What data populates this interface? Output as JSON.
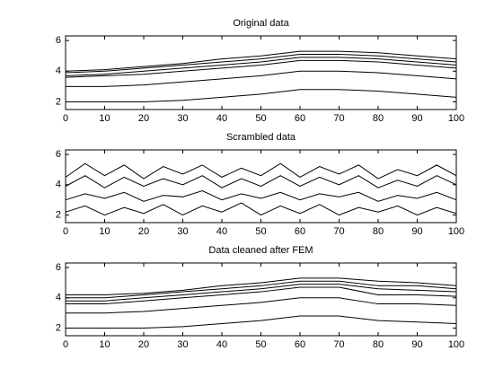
{
  "chart_data": [
    {
      "type": "line",
      "title": "Original data",
      "x": [
        0,
        10,
        20,
        30,
        40,
        50,
        60,
        70,
        80,
        90,
        100
      ],
      "series": [
        {
          "color": "#000000",
          "values": [
            4.0,
            4.1,
            4.3,
            4.5,
            4.8,
            5.0,
            5.3,
            5.3,
            5.2,
            5.0,
            4.8
          ]
        },
        {
          "color": "#000000",
          "values": [
            3.9,
            4.0,
            4.2,
            4.4,
            4.6,
            4.8,
            5.1,
            5.1,
            5.0,
            4.8,
            4.6
          ]
        },
        {
          "color": "#000000",
          "values": [
            3.7,
            3.8,
            4.0,
            4.2,
            4.4,
            4.6,
            4.9,
            4.9,
            4.8,
            4.6,
            4.4
          ]
        },
        {
          "color": "#000000",
          "values": [
            3.6,
            3.7,
            3.8,
            4.0,
            4.2,
            4.4,
            4.7,
            4.7,
            4.6,
            4.4,
            4.2
          ]
        },
        {
          "color": "#000000",
          "values": [
            3.0,
            3.0,
            3.1,
            3.3,
            3.5,
            3.7,
            4.0,
            4.0,
            3.9,
            3.7,
            3.5
          ]
        },
        {
          "color": "#000000",
          "values": [
            2.0,
            2.0,
            2.0,
            2.1,
            2.3,
            2.5,
            2.8,
            2.8,
            2.7,
            2.5,
            2.3
          ]
        }
      ],
      "xlim": [
        0,
        100
      ],
      "xticks": [
        0,
        10,
        20,
        30,
        40,
        50,
        60,
        70,
        80,
        90,
        100
      ],
      "ylim": [
        1.5,
        6.3
      ],
      "yticks": [
        2,
        4,
        6
      ]
    },
    {
      "type": "line",
      "title": "Scrambled data",
      "x": [
        0,
        5,
        10,
        15,
        20,
        25,
        30,
        35,
        40,
        45,
        50,
        55,
        60,
        65,
        70,
        75,
        80,
        85,
        90,
        95,
        100
      ],
      "series": [
        {
          "color": "#000000",
          "values": [
            4.5,
            5.4,
            4.6,
            5.3,
            4.4,
            5.2,
            4.7,
            5.3,
            4.5,
            5.1,
            4.6,
            5.4,
            4.5,
            5.2,
            4.7,
            5.3,
            4.4,
            5.0,
            4.6,
            5.3,
            4.6
          ]
        },
        {
          "color": "#000000",
          "values": [
            3.9,
            4.6,
            3.8,
            4.5,
            3.9,
            4.4,
            4.0,
            4.6,
            3.8,
            4.4,
            3.9,
            4.6,
            3.9,
            4.5,
            4.0,
            4.6,
            3.8,
            4.3,
            3.9,
            4.6,
            4.0
          ]
        },
        {
          "color": "#000000",
          "values": [
            3.0,
            3.4,
            3.1,
            3.5,
            2.9,
            3.3,
            3.2,
            3.6,
            3.0,
            3.4,
            3.1,
            3.5,
            3.0,
            3.4,
            3.2,
            3.5,
            2.9,
            3.3,
            3.1,
            3.5,
            3.0
          ]
        },
        {
          "color": "#000000",
          "values": [
            2.2,
            2.6,
            2.0,
            2.5,
            2.1,
            2.7,
            2.0,
            2.6,
            2.2,
            2.8,
            2.0,
            2.6,
            2.1,
            2.7,
            2.0,
            2.5,
            2.2,
            2.6,
            2.0,
            2.5,
            2.1
          ]
        }
      ],
      "xlim": [
        0,
        100
      ],
      "xticks": [
        0,
        10,
        20,
        30,
        40,
        50,
        60,
        70,
        80,
        90,
        100
      ],
      "ylim": [
        1.5,
        6.3
      ],
      "yticks": [
        2,
        4,
        6
      ]
    },
    {
      "type": "line",
      "title": "Data cleaned after FEM",
      "x": [
        0,
        10,
        20,
        30,
        40,
        50,
        60,
        70,
        80,
        90,
        100
      ],
      "series": [
        {
          "color": "#000000",
          "values": [
            4.2,
            4.2,
            4.3,
            4.5,
            4.8,
            5.0,
            5.3,
            5.3,
            5.1,
            5.0,
            4.8
          ]
        },
        {
          "color": "#000000",
          "values": [
            4.0,
            4.0,
            4.2,
            4.4,
            4.6,
            4.8,
            5.1,
            5.1,
            4.8,
            4.8,
            4.6
          ]
        },
        {
          "color": "#000000",
          "values": [
            3.8,
            3.8,
            4.0,
            4.2,
            4.4,
            4.6,
            4.9,
            4.9,
            4.6,
            4.5,
            4.4
          ]
        },
        {
          "color": "#000000",
          "values": [
            3.6,
            3.6,
            3.8,
            4.0,
            4.2,
            4.4,
            4.7,
            4.7,
            4.2,
            4.2,
            4.1
          ]
        },
        {
          "color": "#000000",
          "values": [
            3.0,
            3.0,
            3.1,
            3.3,
            3.5,
            3.7,
            4.0,
            4.0,
            3.6,
            3.6,
            3.5
          ]
        },
        {
          "color": "#000000",
          "values": [
            2.0,
            2.0,
            2.0,
            2.1,
            2.3,
            2.5,
            2.8,
            2.8,
            2.5,
            2.4,
            2.3
          ]
        }
      ],
      "xlim": [
        0,
        100
      ],
      "xticks": [
        0,
        10,
        20,
        30,
        40,
        50,
        60,
        70,
        80,
        90,
        100
      ],
      "ylim": [
        1.5,
        6.3
      ],
      "yticks": [
        2,
        4,
        6
      ]
    }
  ]
}
